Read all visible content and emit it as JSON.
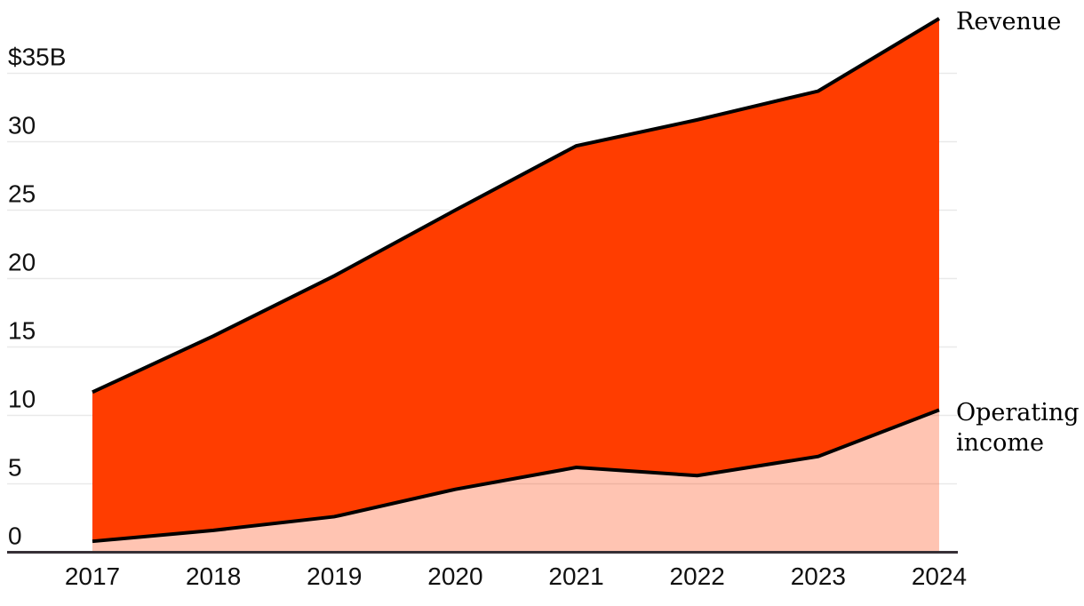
{
  "chart_data": {
    "type": "area",
    "title": "",
    "unit": "$B",
    "x": [
      "2017",
      "2018",
      "2019",
      "2020",
      "2021",
      "2022",
      "2023",
      "2024"
    ],
    "series": [
      {
        "name": "Revenue",
        "values": [
          11.7,
          15.8,
          20.2,
          25.0,
          29.7,
          31.6,
          33.7,
          39.0
        ]
      },
      {
        "name": "Operating income",
        "values": [
          0.8,
          1.6,
          2.6,
          4.6,
          6.2,
          5.6,
          7.0,
          10.4
        ]
      }
    ],
    "y_ticks": [
      {
        "value": 0,
        "label": "0",
        "grid": false
      },
      {
        "value": 5,
        "label": "5",
        "grid": true
      },
      {
        "value": 10,
        "label": "10",
        "grid": true
      },
      {
        "value": 15,
        "label": "15",
        "grid": true
      },
      {
        "value": 20,
        "label": "20",
        "grid": true
      },
      {
        "value": 25,
        "label": "25",
        "grid": true
      },
      {
        "value": 30,
        "label": "30",
        "grid": true
      },
      {
        "value": 35,
        "label": "$35B",
        "grid": true
      }
    ],
    "ylim": [
      0,
      39.5
    ],
    "grid": true,
    "legend_position": "right-annotations",
    "colors": {
      "area_fill": "#ff3d00",
      "operating_area_opacity": 0.3,
      "series_line": "#000000",
      "x_axis_line": "#363036",
      "gridline": "#e9e9e9",
      "tick_text": "#111111",
      "annotation_text": "#000000"
    }
  }
}
